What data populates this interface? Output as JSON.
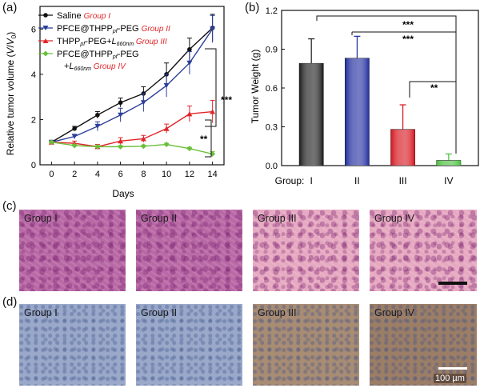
{
  "panel_labels": {
    "a": "(a)",
    "b": "(b)",
    "c": "(c)",
    "d": "(d)"
  },
  "chart_a": {
    "ylabel": "Relative tumor volume (V/V0)",
    "xlabel": "Days",
    "x_ticks": [
      "0",
      "2",
      "4",
      "6",
      "8",
      "10",
      "12",
      "14"
    ],
    "y_ticks": [
      "0",
      "2",
      "4",
      "6"
    ],
    "sig": [
      "***",
      "**"
    ],
    "legend": [
      {
        "name": "Saline",
        "group": "Group I",
        "color": "#111111"
      },
      {
        "name": "PFCE@THPPpf-PEG",
        "group": "Group II",
        "color": "#2b3e99"
      },
      {
        "name": "THPPpf-PEG+L660nm",
        "group": "Group III",
        "color": "#e0262a"
      },
      {
        "name": "PFCE@THPPpf-PEG +L660nm",
        "group": "Group IV",
        "color": "#6abf3a"
      }
    ]
  },
  "chart_b": {
    "ylabel": "Tumor Weight (g)",
    "xlabel": "Group:",
    "y_ticks": [
      "0.0",
      "0.3",
      "0.6",
      "0.9",
      "1.2"
    ],
    "sig": [
      "***",
      "***",
      "**"
    ]
  },
  "chart_data": [
    {
      "type": "line",
      "x": [
        0,
        2,
        4,
        6,
        8,
        10,
        12,
        14
      ],
      "xlim": [
        -1,
        15
      ],
      "ylim": [
        0,
        7
      ],
      "series": [
        {
          "name": "Saline Group I",
          "values": [
            1.0,
            1.6,
            2.2,
            2.75,
            3.15,
            4.0,
            5.1,
            6.05
          ],
          "errors": [
            0.05,
            0.1,
            0.15,
            0.2,
            0.3,
            0.5,
            0.5,
            0.6
          ]
        },
        {
          "name": "PFCE@THPPpf-PEG Group II",
          "values": [
            1.0,
            1.25,
            1.7,
            2.2,
            2.75,
            3.5,
            4.5,
            6.0
          ],
          "errors": [
            0.05,
            0.1,
            0.2,
            0.3,
            0.4,
            0.5,
            0.5,
            0.6
          ]
        },
        {
          "name": "THPPpf-PEG+L660nm Group III",
          "values": [
            1.0,
            0.95,
            0.8,
            1.05,
            1.15,
            1.6,
            2.25,
            2.35
          ],
          "errors": [
            0.05,
            0.1,
            0.1,
            0.15,
            0.15,
            0.2,
            0.35,
            0.5
          ]
        },
        {
          "name": "PFCE@THPPpf-PEG +L660nm Group IV",
          "values": [
            1.0,
            0.85,
            0.8,
            0.8,
            0.82,
            0.9,
            0.72,
            0.48
          ],
          "errors": [
            0.05,
            0.05,
            0.05,
            0.05,
            0.05,
            0.05,
            0.05,
            0.1
          ]
        }
      ]
    },
    {
      "type": "bar",
      "categories": [
        "I",
        "II",
        "III",
        "IV"
      ],
      "values": [
        0.79,
        0.83,
        0.28,
        0.04
      ],
      "errors": [
        0.19,
        0.17,
        0.19,
        0.05
      ],
      "colors": [
        "#1a1a1a",
        "#1f2a9e",
        "#d6121b",
        "#45c03a"
      ],
      "ylim": [
        0,
        1.2
      ]
    }
  ],
  "he_row": [
    {
      "label": "Group I",
      "tone": "dark"
    },
    {
      "label": "Group II",
      "tone": "dark"
    },
    {
      "label": "Group III",
      "tone": "light"
    },
    {
      "label": "Group IV",
      "tone": "light"
    }
  ],
  "ihc_row": [
    {
      "label": "Group I",
      "tone": "blue"
    },
    {
      "label": "Group II",
      "tone": "blue"
    },
    {
      "label": "Group III",
      "tone": "brown"
    },
    {
      "label": "Group IV",
      "tone": "brown2"
    }
  ],
  "scale_bar": "100 µm"
}
